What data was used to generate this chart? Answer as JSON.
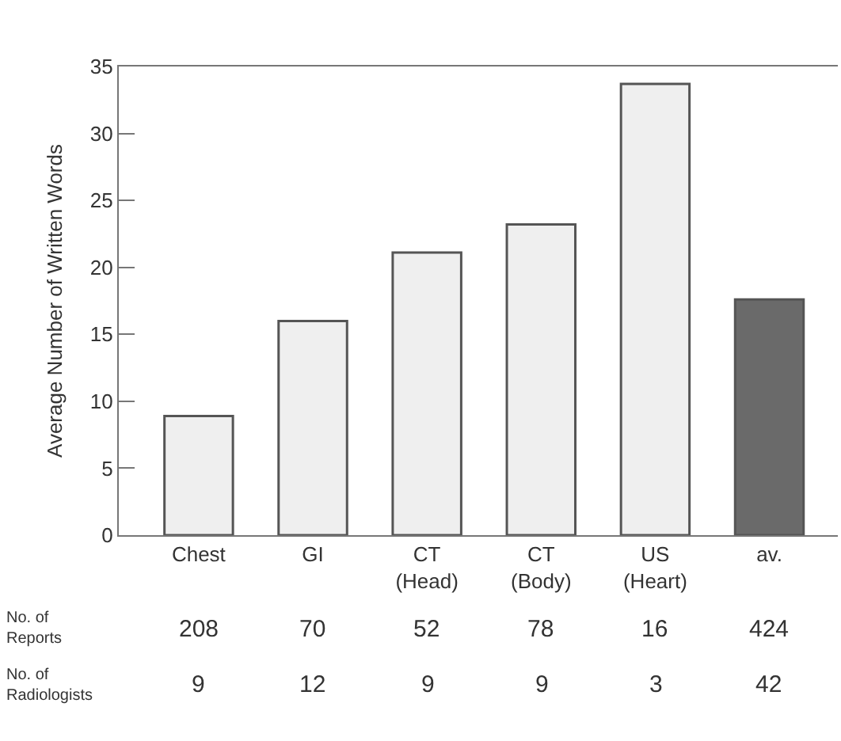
{
  "chart_data": {
    "type": "bar",
    "ylabel": "Average Number of Written Words",
    "categories": [
      "Chest",
      "GI",
      "CT\n(Head)",
      "CT\n(Body)",
      "US\n(Heart)",
      "av."
    ],
    "values": [
      8.9,
      16,
      21.1,
      23.2,
      33.7,
      17.6
    ],
    "colors": [
      "#efefef",
      "#efefef",
      "#efefef",
      "#efefef",
      "#efefef",
      "#6a6a6a"
    ],
    "ylim": [
      0,
      35
    ],
    "yticks": [
      0,
      5,
      10,
      15,
      20,
      25,
      30,
      35
    ],
    "grid": false,
    "annotations": [
      "No. of\nReports",
      "208",
      "70",
      "52",
      "78",
      "16",
      "424",
      "No. of\nRadiologists",
      "9",
      "12",
      "9",
      "9",
      "3",
      "42"
    ]
  }
}
